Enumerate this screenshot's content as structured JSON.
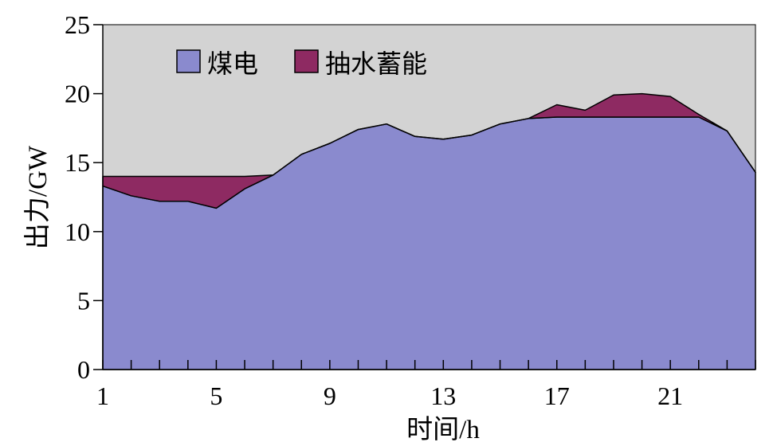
{
  "chart_data": {
    "type": "area",
    "stacked": true,
    "x": [
      1,
      2,
      3,
      4,
      5,
      6,
      7,
      8,
      9,
      10,
      11,
      12,
      13,
      14,
      15,
      16,
      17,
      18,
      19,
      20,
      21,
      22,
      23,
      24
    ],
    "series": [
      {
        "name": "煤电",
        "color": "#8A8ACE",
        "values": [
          13.3,
          12.6,
          12.2,
          12.2,
          11.7,
          13.1,
          14.1,
          15.6,
          16.4,
          17.4,
          17.8,
          16.9,
          16.7,
          17.0,
          17.8,
          18.2,
          18.3,
          18.3,
          18.3,
          18.3,
          18.3,
          18.3,
          17.3,
          14.3
        ]
      },
      {
        "name": "抽水蓄能",
        "color": "#8E2A62",
        "values": [
          0.7,
          1.4,
          1.8,
          1.8,
          2.3,
          0.9,
          0,
          0,
          0,
          0,
          0,
          0,
          0,
          0,
          0,
          0,
          0.9,
          0.5,
          1.6,
          1.7,
          1.5,
          0.2,
          0,
          0
        ]
      }
    ],
    "xlabel": "时间/h",
    "ylabel": "出力/GW",
    "xlim": [
      1,
      24
    ],
    "ylim": [
      0,
      25
    ],
    "xticks": [
      1,
      5,
      9,
      13,
      17,
      21
    ],
    "yticks": [
      0,
      5,
      10,
      15,
      20,
      25
    ],
    "grid": false,
    "legend": "top-left",
    "plot_background": "#D3D3D3",
    "axis_color": "#000000"
  }
}
